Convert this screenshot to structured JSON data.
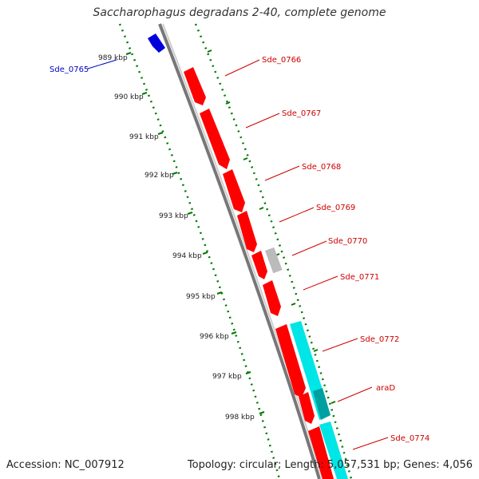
{
  "title": "Saccharophagus degradans 2-40, complete genome",
  "accession": "Accession: NC_007912",
  "topology": "Topology: circular; Length: 5,057,531 bp; Genes: 4,056",
  "colors": {
    "forward_gene": "#ff0000",
    "reverse_gene": "#0000dd",
    "cds_cyan": "#00e5e5",
    "other_feature": "#bbbbbb",
    "backbone": "#888888",
    "ticks": "#007700",
    "forward_label": "#cc0000",
    "reverse_label": "#0000cc"
  },
  "scale_labels": [
    "989 kbp",
    "990 kbp",
    "991 kbp",
    "992 kbp",
    "993 kbp",
    "994 kbp",
    "995 kbp",
    "996 kbp",
    "997 kbp",
    "998 kbp"
  ],
  "gene_labels_forward": [
    "Sde_0766",
    "Sde_0767",
    "Sde_0768",
    "Sde_0769",
    "Sde_0770",
    "Sde_0771",
    "Sde_0772",
    "araD",
    "Sde_0774"
  ],
  "gene_labels_reverse": [
    "Sde_0765"
  ]
}
